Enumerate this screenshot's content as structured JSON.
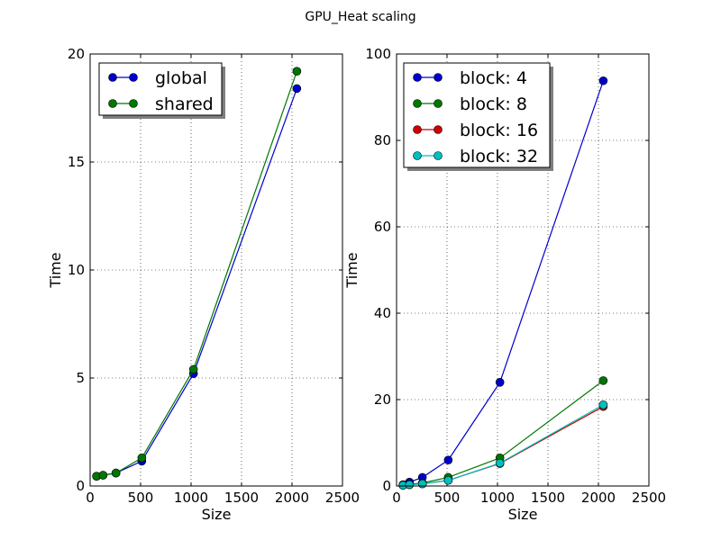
{
  "figure": {
    "title": "GPU_Heat scaling"
  },
  "chart_data": [
    {
      "type": "line",
      "title": "",
      "xlabel": "Size",
      "ylabel": "Time",
      "xlim": [
        0,
        2500
      ],
      "ylim": [
        0,
        20
      ],
      "xticks": [
        0,
        500,
        1000,
        1500,
        2000,
        2500
      ],
      "yticks": [
        0,
        5,
        10,
        15,
        20
      ],
      "xtick_labels": [
        "0",
        "500",
        "1000",
        "1500",
        "2000",
        "2500"
      ],
      "ytick_labels": [
        "0",
        "5",
        "10",
        "15",
        "20"
      ],
      "grid": true,
      "legend": "top-left",
      "x": [
        64,
        128,
        256,
        512,
        1024,
        2048
      ],
      "series": [
        {
          "name": "global",
          "color": "#0000cc",
          "values": [
            0.45,
            0.5,
            0.6,
            1.15,
            5.2,
            18.4
          ]
        },
        {
          "name": "shared",
          "color": "#007700",
          "values": [
            0.45,
            0.5,
            0.6,
            1.3,
            5.4,
            19.2
          ]
        }
      ]
    },
    {
      "type": "line",
      "title": "",
      "xlabel": "Size",
      "ylabel": "Time",
      "xlim": [
        0,
        2500
      ],
      "ylim": [
        0,
        100
      ],
      "xticks": [
        0,
        500,
        1000,
        1500,
        2000,
        2500
      ],
      "yticks": [
        0,
        20,
        40,
        60,
        80,
        100
      ],
      "xtick_labels": [
        "0",
        "500",
        "1000",
        "1500",
        "2000",
        "2500"
      ],
      "ytick_labels": [
        "0",
        "20",
        "40",
        "60",
        "80",
        "100"
      ],
      "grid": true,
      "legend": "top-left",
      "x": [
        64,
        128,
        256,
        512,
        1024,
        2048
      ],
      "series": [
        {
          "name": "block: 4",
          "color": "#0000cc",
          "values": [
            0.3,
            0.9,
            2.0,
            6.0,
            24.0,
            93.8
          ]
        },
        {
          "name": "block: 8",
          "color": "#007700",
          "values": [
            0.2,
            0.4,
            0.7,
            2.0,
            6.5,
            24.4
          ]
        },
        {
          "name": "block: 16",
          "color": "#cc0000",
          "values": [
            0.15,
            0.3,
            0.5,
            1.3,
            5.2,
            18.4
          ]
        },
        {
          "name": "block: 32",
          "color": "#00bfbf",
          "values": [
            0.15,
            0.3,
            0.5,
            1.3,
            5.3,
            18.8
          ]
        }
      ]
    }
  ]
}
